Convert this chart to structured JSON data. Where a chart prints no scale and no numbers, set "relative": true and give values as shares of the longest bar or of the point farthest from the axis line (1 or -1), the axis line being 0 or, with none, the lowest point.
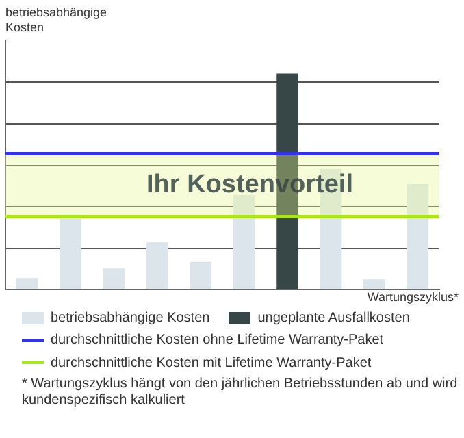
{
  "chart_data": {
    "type": "bar",
    "relative": true,
    "stacked": true,
    "ylabel": "betriebsabhängige Kosten",
    "xlabel": "Wartungszyklus*",
    "categories": [
      null,
      null,
      null,
      null,
      null,
      null,
      null,
      null,
      null,
      null
    ],
    "series": [
      {
        "name": "betriebsabhängige Kosten",
        "color": "#dce5ec",
        "values": [
          0.056,
          0.33,
          0.1,
          0.22,
          0.13,
          0.44,
          null,
          0.56,
          0.05,
          0.49
        ]
      },
      {
        "name": "ungeplante Ausfallkosten",
        "color": "#374646",
        "values": [
          null,
          null,
          null,
          null,
          null,
          null,
          1,
          null,
          null,
          null
        ]
      }
    ],
    "ref_lines": [
      {
        "axis": "y",
        "value": 0.63,
        "label": "durchschnittliche Kosten ohne Lifetime Warranty-Paket",
        "color": "#3535e0"
      },
      {
        "axis": "y",
        "value": 0.34,
        "label": "durchschnittliche Kosten mit Lifetime Warranty-Paket",
        "color": "#a9e51c"
      }
    ],
    "bands": [
      {
        "axis": "y",
        "from": 0.34,
        "to": 0.63,
        "label": "Ihr Kostenvorteil",
        "color": "#e6f58c"
      }
    ],
    "grid": "y",
    "legend": "bottom",
    "annotations": [
      "* Wartungszyklus hängt von den jährlichen Betriebsstunden ab und wird kundenspezifisch kalkuliert"
    ]
  }
}
